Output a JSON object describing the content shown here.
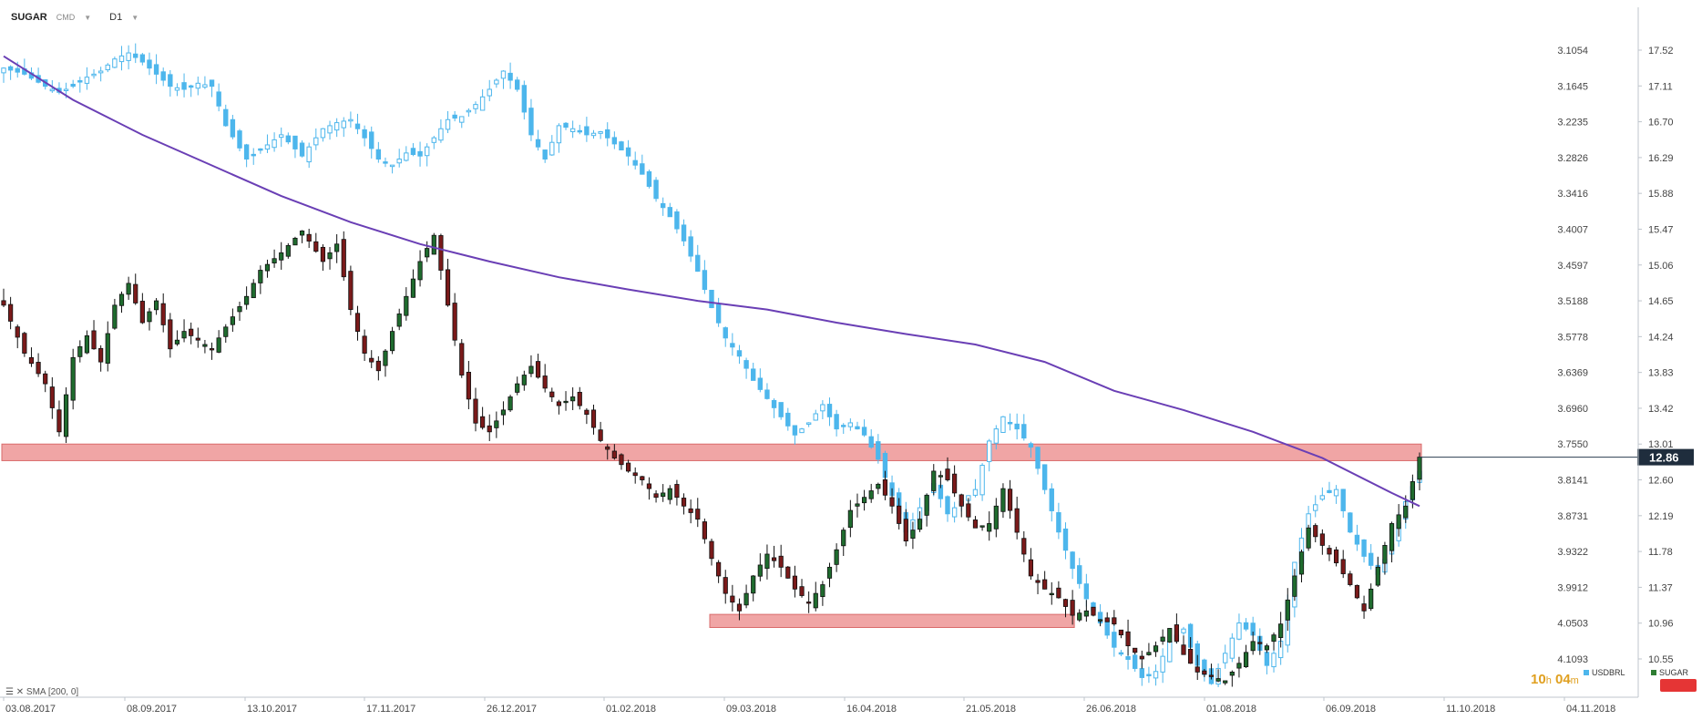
{
  "header": {
    "symbol": "SUGAR",
    "instrument_type": "CMD",
    "timeframe": "D1"
  },
  "indicator": {
    "label": "SMA",
    "params": "[200, 0]"
  },
  "timer": {
    "hours": "10",
    "hours_unit": "h",
    "minutes": "04",
    "minutes_unit": "m"
  },
  "legend": [
    {
      "name": "USDBRL",
      "color": "#4db6ec"
    },
    {
      "name": "SUGAR",
      "color": "#2e7d32"
    }
  ],
  "price_label": "12.86",
  "chart_data": {
    "type": "candlestick",
    "x_tick_labels": [
      "03.08.2017",
      "08.09.2017",
      "13.10.2017",
      "17.11.2017",
      "26.12.2017",
      "01.02.2018",
      "09.03.2018",
      "16.04.2018",
      "21.05.2018",
      "26.06.2018",
      "01.08.2018",
      "06.09.2018",
      "11.10.2018",
      "04.11.2018"
    ],
    "right_axis_sugar": [
      17.52,
      17.11,
      16.7,
      16.29,
      15.88,
      15.47,
      15.06,
      14.65,
      14.24,
      13.83,
      13.42,
      13.01,
      12.6,
      12.19,
      11.78,
      11.37,
      10.96,
      10.55
    ],
    "left_axis_usdbrl_inverted": [
      "3.1054",
      "3.1645",
      "3.2235",
      "3.2826",
      "3.3416",
      "3.4007",
      "3.4597",
      "3.5188",
      "3.5778",
      "3.6369",
      "3.6960",
      "3.7550",
      "3.8141",
      "3.8731",
      "3.9322",
      "3.9912",
      "4.0503",
      "4.1093"
    ],
    "ylim_sugar": [
      10.35,
      17.75
    ],
    "current_price": 12.86,
    "sugar_close_path": [
      [
        0,
        14.6
      ],
      [
        3,
        14.05
      ],
      [
        6,
        13.7
      ],
      [
        8,
        13.15
      ],
      [
        10,
        14.0
      ],
      [
        12,
        14.25
      ],
      [
        14,
        13.95
      ],
      [
        16,
        14.6
      ],
      [
        18,
        14.85
      ],
      [
        20,
        14.4
      ],
      [
        22,
        14.65
      ],
      [
        24,
        14.1
      ],
      [
        26,
        14.3
      ],
      [
        28,
        14.2
      ],
      [
        30,
        14.1
      ],
      [
        32,
        14.35
      ],
      [
        35,
        14.7
      ],
      [
        37,
        15.0
      ],
      [
        40,
        15.2
      ],
      [
        43,
        15.45
      ],
      [
        46,
        15.1
      ],
      [
        48,
        15.3
      ],
      [
        50,
        14.55
      ],
      [
        52,
        14.05
      ],
      [
        54,
        13.85
      ],
      [
        56,
        14.3
      ],
      [
        58,
        14.7
      ],
      [
        60,
        15.1
      ],
      [
        62,
        15.4
      ],
      [
        64,
        14.6
      ],
      [
        66,
        13.8
      ],
      [
        68,
        13.25
      ],
      [
        70,
        13.15
      ],
      [
        72,
        13.4
      ],
      [
        74,
        13.7
      ],
      [
        76,
        13.9
      ],
      [
        78,
        13.65
      ],
      [
        80,
        13.45
      ],
      [
        82,
        13.55
      ],
      [
        84,
        13.35
      ],
      [
        86,
        13.05
      ],
      [
        88,
        12.85
      ],
      [
        90,
        12.7
      ],
      [
        92,
        12.6
      ],
      [
        94,
        12.4
      ],
      [
        96,
        12.5
      ],
      [
        98,
        12.3
      ],
      [
        100,
        12.15
      ],
      [
        102,
        11.7
      ],
      [
        104,
        11.3
      ],
      [
        106,
        11.1
      ],
      [
        108,
        11.5
      ],
      [
        110,
        11.75
      ],
      [
        112,
        11.6
      ],
      [
        114,
        11.35
      ],
      [
        116,
        11.2
      ],
      [
        118,
        11.4
      ],
      [
        120,
        11.8
      ],
      [
        122,
        12.25
      ],
      [
        124,
        12.4
      ],
      [
        126,
        12.55
      ],
      [
        128,
        12.3
      ],
      [
        130,
        11.9
      ],
      [
        132,
        12.15
      ],
      [
        134,
        12.7
      ],
      [
        136,
        12.6
      ],
      [
        138,
        12.3
      ],
      [
        140,
        12.05
      ],
      [
        142,
        12.1
      ],
      [
        144,
        12.5
      ],
      [
        146,
        12.0
      ],
      [
        148,
        11.5
      ],
      [
        150,
        11.35
      ],
      [
        152,
        11.25
      ],
      [
        154,
        11.05
      ],
      [
        156,
        11.1
      ],
      [
        158,
        11.0
      ],
      [
        160,
        10.95
      ],
      [
        162,
        10.7
      ],
      [
        164,
        10.55
      ],
      [
        166,
        10.7
      ],
      [
        168,
        10.9
      ],
      [
        170,
        10.6
      ],
      [
        172,
        10.4
      ],
      [
        174,
        10.35
      ],
      [
        176,
        10.3
      ],
      [
        178,
        10.5
      ],
      [
        180,
        10.75
      ],
      [
        182,
        10.7
      ],
      [
        184,
        10.95
      ],
      [
        186,
        11.5
      ],
      [
        188,
        12.05
      ],
      [
        190,
        11.85
      ],
      [
        192,
        11.65
      ],
      [
        194,
        11.4
      ],
      [
        196,
        11.1
      ],
      [
        198,
        11.6
      ],
      [
        200,
        12.1
      ],
      [
        202,
        12.3
      ],
      [
        204,
        12.86
      ]
    ],
    "usdbrl_close_path": [
      [
        0,
        3.135
      ],
      [
        3,
        3.145
      ],
      [
        6,
        3.165
      ],
      [
        8,
        3.175
      ],
      [
        10,
        3.165
      ],
      [
        12,
        3.15
      ],
      [
        14,
        3.14
      ],
      [
        16,
        3.12
      ],
      [
        18,
        3.11
      ],
      [
        20,
        3.125
      ],
      [
        22,
        3.145
      ],
      [
        24,
        3.165
      ],
      [
        26,
        3.17
      ],
      [
        28,
        3.16
      ],
      [
        30,
        3.165
      ],
      [
        32,
        3.23
      ],
      [
        35,
        3.285
      ],
      [
        37,
        3.27
      ],
      [
        40,
        3.245
      ],
      [
        43,
        3.28
      ],
      [
        46,
        3.235
      ],
      [
        48,
        3.225
      ],
      [
        50,
        3.22
      ],
      [
        52,
        3.25
      ],
      [
        54,
        3.285
      ],
      [
        56,
        3.295
      ],
      [
        58,
        3.275
      ],
      [
        60,
        3.28
      ],
      [
        62,
        3.25
      ],
      [
        64,
        3.22
      ],
      [
        66,
        3.215
      ],
      [
        68,
        3.195
      ],
      [
        70,
        3.17
      ],
      [
        72,
        3.14
      ],
      [
        74,
        3.17
      ],
      [
        76,
        3.245
      ],
      [
        78,
        3.285
      ],
      [
        80,
        3.23
      ],
      [
        82,
        3.235
      ],
      [
        84,
        3.245
      ],
      [
        86,
        3.24
      ],
      [
        88,
        3.26
      ],
      [
        90,
        3.28
      ],
      [
        92,
        3.31
      ],
      [
        94,
        3.35
      ],
      [
        96,
        3.38
      ],
      [
        98,
        3.42
      ],
      [
        100,
        3.47
      ],
      [
        102,
        3.53
      ],
      [
        104,
        3.58
      ],
      [
        106,
        3.61
      ],
      [
        108,
        3.65
      ],
      [
        110,
        3.68
      ],
      [
        112,
        3.71
      ],
      [
        114,
        3.74
      ],
      [
        116,
        3.72
      ],
      [
        118,
        3.69
      ],
      [
        120,
        3.73
      ],
      [
        122,
        3.72
      ],
      [
        124,
        3.74
      ],
      [
        126,
        3.78
      ],
      [
        128,
        3.84
      ],
      [
        130,
        3.9
      ],
      [
        132,
        3.86
      ],
      [
        134,
        3.82
      ],
      [
        136,
        3.87
      ],
      [
        138,
        3.85
      ],
      [
        140,
        3.83
      ],
      [
        142,
        3.75
      ],
      [
        144,
        3.71
      ],
      [
        146,
        3.73
      ],
      [
        148,
        3.76
      ],
      [
        150,
        3.83
      ],
      [
        152,
        3.9
      ],
      [
        154,
        3.96
      ],
      [
        156,
        4.01
      ],
      [
        158,
        4.05
      ],
      [
        160,
        4.09
      ],
      [
        162,
        4.11
      ],
      [
        164,
        4.14
      ],
      [
        166,
        4.13
      ],
      [
        168,
        4.08
      ],
      [
        170,
        4.06
      ],
      [
        172,
        4.12
      ],
      [
        174,
        4.15
      ],
      [
        176,
        4.1
      ],
      [
        178,
        4.05
      ],
      [
        180,
        4.07
      ],
      [
        182,
        4.12
      ],
      [
        184,
        4.08
      ],
      [
        186,
        3.95
      ],
      [
        188,
        3.87
      ],
      [
        190,
        3.84
      ],
      [
        192,
        3.83
      ],
      [
        194,
        3.9
      ],
      [
        196,
        3.94
      ],
      [
        198,
        3.97
      ],
      [
        200,
        3.92
      ],
      [
        202,
        3.85
      ],
      [
        204,
        3.8
      ]
    ],
    "sma_200_path": [
      [
        0,
        17.45
      ],
      [
        10,
        16.95
      ],
      [
        20,
        16.55
      ],
      [
        30,
        16.2
      ],
      [
        40,
        15.85
      ],
      [
        50,
        15.55
      ],
      [
        60,
        15.3
      ],
      [
        70,
        15.1
      ],
      [
        80,
        14.92
      ],
      [
        90,
        14.78
      ],
      [
        100,
        14.65
      ],
      [
        110,
        14.55
      ],
      [
        120,
        14.4
      ],
      [
        130,
        14.27
      ],
      [
        140,
        14.15
      ],
      [
        150,
        13.95
      ],
      [
        160,
        13.62
      ],
      [
        170,
        13.4
      ],
      [
        180,
        13.15
      ],
      [
        190,
        12.85
      ],
      [
        200,
        12.45
      ],
      [
        204,
        12.3
      ]
    ],
    "support_zones": [
      {
        "y_min": 12.82,
        "y_max": 13.01,
        "x_from": 0,
        "x_to": 204
      },
      {
        "y_min": 10.91,
        "y_max": 11.06,
        "x_from": 102,
        "x_to": 154
      }
    ],
    "grid": false
  }
}
